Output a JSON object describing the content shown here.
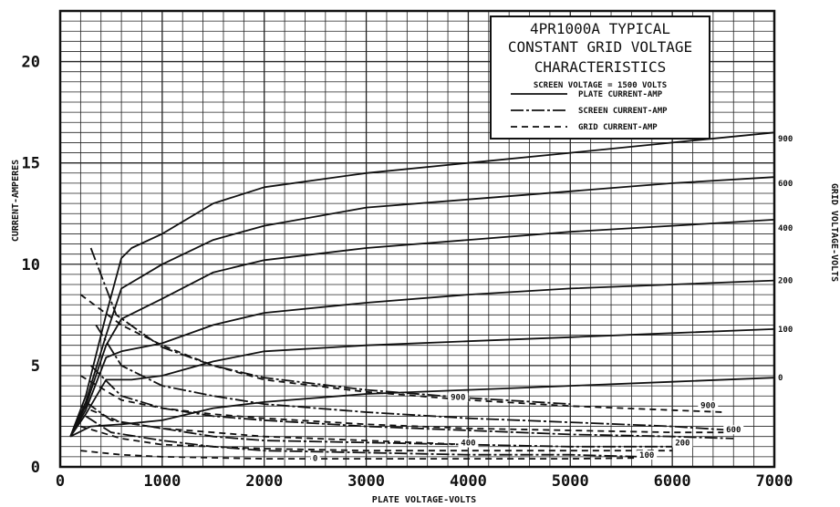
{
  "chart_data": {
    "type": "line",
    "title_lines": [
      "4PR1000A  TYPICAL",
      "CONSTANT GRID VOLTAGE",
      "CHARACTERISTICS"
    ],
    "subtitle": "SCREEN VOLTAGE = 1500 VOLTS",
    "xlabel": "PLATE VOLTAGE-VOLTS",
    "ylabel": "CURRENT-AMPERES",
    "y2label": "GRID VOLTAGE-VOLTS",
    "xlim": [
      0,
      7000
    ],
    "ylim": [
      0,
      22.5
    ],
    "x_ticks": [
      {
        "value": 0,
        "label": "0"
      },
      {
        "value": 1000,
        "label": "1000"
      },
      {
        "value": 2000,
        "label": "2000"
      },
      {
        "value": 3000,
        "label": "3000"
      },
      {
        "value": 4000,
        "label": "4000"
      },
      {
        "value": 5000,
        "label": "5000"
      },
      {
        "value": 6000,
        "label": "6000"
      },
      {
        "value": 7000,
        "label": "7000"
      }
    ],
    "y_ticks": [
      {
        "value": 0,
        "label": "0"
      },
      {
        "value": 5,
        "label": "5"
      },
      {
        "value": 10,
        "label": "10"
      },
      {
        "value": 15,
        "label": "15"
      },
      {
        "value": 20,
        "label": "20"
      }
    ],
    "grid": true,
    "legend": {
      "position": "top-right",
      "entries": [
        {
          "label": "PLATE CURRENT-AMP",
          "dash": ""
        },
        {
          "label": "SCREEN CURRENT-AMP",
          "dash": "14 3 3 3"
        },
        {
          "label": "GRID CURRENT-AMP",
          "dash": "7 5"
        }
      ]
    },
    "grid_voltage_labels": [
      {
        "label": "900",
        "y": 16.2
      },
      {
        "label": "600",
        "y": 14.0
      },
      {
        "label": "400",
        "y": 11.8
      },
      {
        "label": "200",
        "y": 9.2
      },
      {
        "label": "100",
        "y": 6.8
      },
      {
        "label": "0",
        "y": 4.4
      }
    ],
    "curve_labels": [
      {
        "label": "900",
        "x": 3900,
        "y": 3.3
      },
      {
        "label": "900",
        "x": 6350,
        "y": 2.9
      },
      {
        "label": "600",
        "x": 6600,
        "y": 1.7
      },
      {
        "label": "400",
        "x": 4000,
        "y": 1.05
      },
      {
        "label": "200",
        "x": 6100,
        "y": 1.05
      },
      {
        "label": "100",
        "x": 5750,
        "y": 0.45
      },
      {
        "label": "0",
        "x": 2500,
        "y": 0.3
      }
    ],
    "series": [
      {
        "kind": "plate",
        "grid_voltage": "900",
        "x": [
          100,
          250,
          450,
          600,
          700,
          1000,
          1500,
          2000,
          3000,
          4000,
          5000,
          6000,
          7000
        ],
        "y": [
          1.5,
          3.5,
          7.5,
          10.3,
          10.8,
          11.5,
          13.0,
          13.8,
          14.5,
          15.0,
          15.5,
          16.0,
          16.5
        ]
      },
      {
        "kind": "plate",
        "grid_voltage": "600",
        "x": [
          100,
          250,
          450,
          600,
          1000,
          1500,
          2000,
          3000,
          4000,
          5000,
          6000,
          7000
        ],
        "y": [
          1.5,
          3.2,
          6.5,
          8.8,
          10.0,
          11.2,
          11.9,
          12.8,
          13.2,
          13.6,
          14.0,
          14.3
        ]
      },
      {
        "kind": "plate",
        "grid_voltage": "400",
        "x": [
          100,
          250,
          450,
          600,
          1000,
          1500,
          2000,
          3000,
          4000,
          5000,
          6000,
          7000
        ],
        "y": [
          1.5,
          3.0,
          6.0,
          7.3,
          8.3,
          9.6,
          10.2,
          10.8,
          11.2,
          11.6,
          11.9,
          12.2
        ]
      },
      {
        "kind": "plate",
        "grid_voltage": "200",
        "x": [
          100,
          250,
          450,
          600,
          1000,
          1500,
          2000,
          3000,
          4000,
          5000,
          6000,
          7000
        ],
        "y": [
          1.5,
          2.8,
          5.4,
          5.7,
          6.1,
          7.0,
          7.6,
          8.1,
          8.5,
          8.8,
          9.0,
          9.2
        ]
      },
      {
        "kind": "plate",
        "grid_voltage": "100",
        "x": [
          100,
          250,
          450,
          700,
          1000,
          1500,
          2000,
          3000,
          4000,
          5000,
          6000,
          7000
        ],
        "y": [
          1.5,
          2.6,
          4.3,
          4.3,
          4.5,
          5.2,
          5.7,
          6.0,
          6.2,
          6.4,
          6.6,
          6.8
        ]
      },
      {
        "kind": "plate",
        "grid_voltage": "0",
        "x": [
          100,
          300,
          600,
          1000,
          1500,
          2000,
          3000,
          4000,
          5000,
          6000,
          7000
        ],
        "y": [
          1.5,
          2.0,
          2.1,
          2.3,
          2.9,
          3.2,
          3.6,
          3.8,
          4.0,
          4.2,
          4.4
        ]
      },
      {
        "kind": "screen",
        "grid_voltage": "900",
        "x": [
          300,
          550,
          1000,
          1500,
          2000,
          3000,
          4000,
          5000
        ],
        "y": [
          10.8,
          7.5,
          5.9,
          5.0,
          4.4,
          3.8,
          3.4,
          3.1
        ]
      },
      {
        "kind": "screen",
        "grid_voltage": "600",
        "x": [
          350,
          600,
          1000,
          1500,
          2000,
          3000,
          4000,
          5000,
          6000,
          6600
        ],
        "y": [
          7.0,
          5.0,
          4.0,
          3.5,
          3.1,
          2.7,
          2.4,
          2.2,
          2.0,
          1.8
        ]
      },
      {
        "kind": "screen",
        "grid_voltage": "400",
        "x": [
          300,
          600,
          1000,
          1500,
          2000,
          3000,
          4000,
          5000,
          6000,
          6600
        ],
        "y": [
          5.0,
          3.5,
          2.9,
          2.5,
          2.3,
          2.0,
          1.8,
          1.6,
          1.5,
          1.4
        ]
      },
      {
        "kind": "screen",
        "grid_voltage": "200",
        "x": [
          250,
          500,
          1000,
          1500,
          2000,
          3000,
          4000,
          5000,
          6000
        ],
        "y": [
          3.2,
          2.3,
          1.9,
          1.5,
          1.3,
          1.2,
          1.1,
          1.0,
          1.0
        ]
      },
      {
        "kind": "screen",
        "grid_voltage": "100",
        "x": [
          250,
          500,
          1000,
          1500,
          2000,
          3000,
          4000,
          5000,
          5700
        ],
        "y": [
          2.5,
          1.7,
          1.3,
          1.0,
          0.8,
          0.7,
          0.6,
          0.6,
          0.5
        ]
      },
      {
        "kind": "grid",
        "grid_voltage": "900",
        "x": [
          200,
          600,
          1000,
          1500,
          2000,
          3000,
          4000,
          5000,
          6000,
          6500
        ],
        "y": [
          8.5,
          7.0,
          6.0,
          5.0,
          4.3,
          3.7,
          3.3,
          3.0,
          2.8,
          2.7
        ]
      },
      {
        "kind": "grid",
        "grid_voltage": "600",
        "x": [
          200,
          600,
          1000,
          1500,
          2000,
          3000,
          4000,
          5000,
          6000,
          6600
        ],
        "y": [
          4.5,
          3.3,
          2.9,
          2.6,
          2.4,
          2.1,
          1.9,
          1.8,
          1.7,
          1.7
        ]
      },
      {
        "kind": "grid",
        "grid_voltage": "400",
        "x": [
          200,
          600,
          1000,
          1500,
          2000,
          3000,
          4000
        ],
        "y": [
          3.0,
          2.2,
          1.9,
          1.7,
          1.5,
          1.3,
          1.1
        ]
      },
      {
        "kind": "grid",
        "grid_voltage": "200",
        "x": [
          200,
          600,
          1000,
          2000,
          3000,
          4000,
          5000,
          6000
        ],
        "y": [
          2.0,
          1.4,
          1.1,
          0.9,
          0.8,
          0.8,
          0.8,
          0.8
        ]
      },
      {
        "kind": "grid",
        "grid_voltage": "100",
        "x": [
          200,
          600,
          1000,
          2000,
          3000,
          4000,
          5000,
          5800
        ],
        "y": [
          0.8,
          0.6,
          0.5,
          0.4,
          0.4,
          0.4,
          0.4,
          0.45
        ]
      }
    ]
  }
}
